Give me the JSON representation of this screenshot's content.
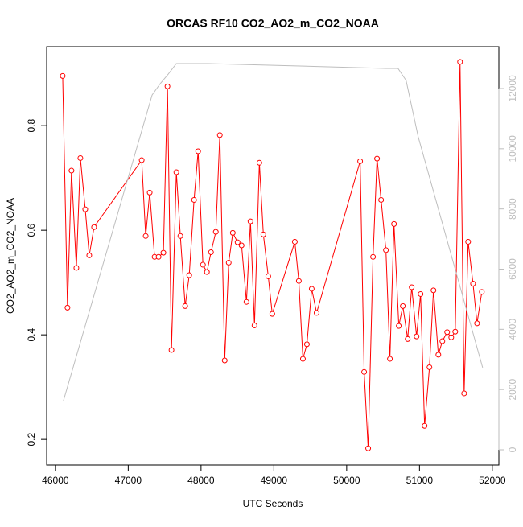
{
  "chart_data": {
    "type": "line",
    "title": "ORCAS RF10 CO2_AO2_m_CO2_NOAA",
    "x_label": "UTC Seconds",
    "y_label": "CO2_AO2_m_CO2_NOAA",
    "xlim": [
      45880,
      52090
    ],
    "xticks": [
      46000,
      47000,
      48000,
      49000,
      50000,
      51000,
      52000
    ],
    "ylim": [
      0.151,
      0.951
    ],
    "yticks": [
      0.2,
      0.4,
      0.6,
      0.8
    ],
    "y2lim": [
      -508,
      13390
    ],
    "y2ticks": [
      0,
      2000,
      4000,
      6000,
      8000,
      10000,
      12000
    ],
    "series": [
      {
        "color": "#ff0000",
        "markers": true,
        "x": [
          46100,
          46166,
          46221,
          46288,
          46343,
          46410,
          46465,
          46531,
          47185,
          47240,
          47295,
          47362,
          47417,
          47483,
          47539,
          47594,
          47661,
          47716,
          47782,
          47838,
          47904,
          47960,
          48026,
          48081,
          48137,
          48203,
          48258,
          48325,
          48380,
          48436,
          48502,
          48557,
          48624,
          48679,
          48734,
          48801,
          48856,
          48923,
          48978,
          49288,
          49343,
          49399,
          49454,
          49520,
          49587,
          50185,
          50240,
          50295,
          50362,
          50417,
          50473,
          50539,
          50594,
          50650,
          50716,
          50771,
          50838,
          50893,
          50960,
          51015,
          51070,
          51137,
          51192,
          51259,
          51314,
          51380,
          51436,
          51491,
          51557,
          51613,
          51668,
          51735,
          51790,
          51856
        ],
        "values": [
          0.895,
          0.452,
          0.714,
          0.528,
          0.738,
          0.64,
          0.552,
          0.606,
          0.734,
          0.589,
          0.672,
          0.549,
          0.549,
          0.557,
          0.875,
          0.371,
          0.711,
          0.589,
          0.455,
          0.514,
          0.658,
          0.751,
          0.534,
          0.52,
          0.558,
          0.597,
          0.782,
          0.351,
          0.538,
          0.595,
          0.577,
          0.571,
          0.463,
          0.617,
          0.418,
          0.729,
          0.592,
          0.512,
          0.44,
          0.578,
          0.503,
          0.354,
          0.382,
          0.488,
          0.442,
          0.732,
          0.329,
          0.183,
          0.549,
          0.737,
          0.658,
          0.562,
          0.354,
          0.612,
          0.417,
          0.455,
          0.392,
          0.491,
          0.397,
          0.478,
          0.226,
          0.338,
          0.485,
          0.362,
          0.388,
          0.405,
          0.395,
          0.406,
          0.922,
          0.288,
          0.578,
          0.498,
          0.422,
          0.482
        ]
      },
      {
        "color": "#bebebe",
        "axis": "y2",
        "markers": false,
        "x": [
          46111,
          47328,
          47439,
          47550,
          47661,
          48103,
          50539,
          50705,
          50816,
          50982,
          51867
        ],
        "values": [
          1630,
          11785,
          12160,
          12480,
          12830,
          12830,
          12670,
          12670,
          12270,
          10400,
          2730
        ]
      }
    ]
  }
}
